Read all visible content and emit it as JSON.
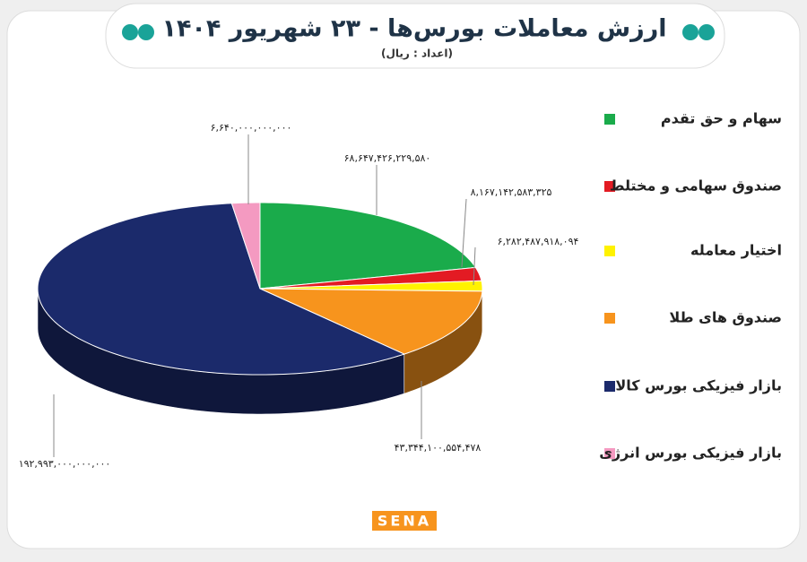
{
  "chart_data": {
    "type": "pie",
    "title": "ارزش معاملات بورس‌ها - ۲۳ شهریور ۱۴۰۴",
    "subtitle": "(اعداد : ریال)",
    "categories": [
      "سهام و حق تقدم",
      "صندوق سهامی و مختلط",
      "اختیار معامله",
      "صندوق های طلا",
      "بازار فیزیکی بورس کالا",
      "بازار فیزیکی بورس انرژی"
    ],
    "values": [
      68647426229580,
      8167142583325,
      6282487918094,
      43344100554478,
      192993000000000,
      6640000000000
    ],
    "value_labels": [
      "۶۸,۶۴۷,۴۲۶,۲۲۹,۵۸۰",
      "۸,۱۶۷,۱۴۲,۵۸۳,۳۲۵",
      "۶,۲۸۲,۴۸۷,۹۱۸,۰۹۴",
      "۴۳,۳۴۴,۱۰۰,۵۵۴,۴۷۸",
      "۱۹۲,۹۹۳,۰۰۰,۰۰۰,۰۰۰",
      "۶,۶۴۰,۰۰۰,۰۰۰,۰۰۰"
    ],
    "colors": [
      "#1aab4b",
      "#e31b23",
      "#fff200",
      "#f7941d",
      "#1b2a6b",
      "#f49ac1"
    ],
    "legend": "right"
  },
  "logo": "SENA"
}
